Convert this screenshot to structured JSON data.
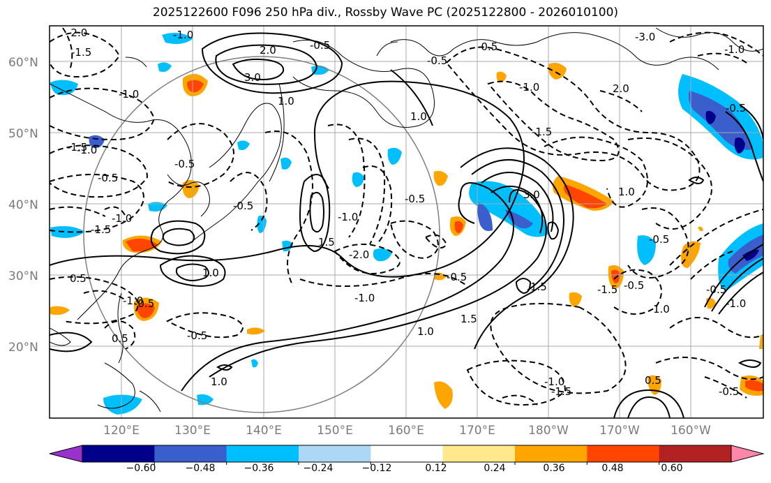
{
  "title": "2025122600 F096 250 hPa div., Rossby Wave PC (2025122800 - 2026010100)",
  "map": {
    "lon_ticks": [
      "120°E",
      "130°E",
      "140°E",
      "150°E",
      "160°E",
      "170°E",
      "180°W",
      "170°W",
      "160°W"
    ],
    "lat_ticks": [
      "60°N",
      "50°N",
      "40°N",
      "30°N",
      "20°N"
    ],
    "grid": true,
    "lon_range": [
      110,
      210
    ],
    "lat_range": [
      10,
      65
    ]
  },
  "colorbar": {
    "ticks": [
      "−0.60",
      "−0.48",
      "−0.36",
      "−0.24",
      "−0.12",
      "0.12",
      "0.24",
      "0.36",
      "0.48",
      "0.60"
    ],
    "colors": [
      "#9932cc",
      "#00008b",
      "#3a5fcd",
      "#00bfff",
      "#add8f5",
      "#ffffff",
      "#ffe98c",
      "#ffa500",
      "#ff4500",
      "#b22222",
      "#ff88aa"
    ]
  },
  "contour_labels": [
    "-1.0",
    "2.0",
    "-0.5",
    "-0.5",
    "-3.0",
    "-1.0",
    "-0.5",
    "-1.5",
    "-1.0",
    "-2.0",
    "-1.0",
    "3.0",
    "1.0",
    "1.0",
    "-0.5",
    "3.0",
    "-1.5",
    "-0.5",
    "-0.5",
    "2.0",
    "-1.0",
    "-0.5",
    "-1.0",
    "-1.5",
    "-0.5",
    "-1.0",
    "1.5",
    "1.0",
    "1.5",
    "-1.5",
    "-0.5",
    "-2.0",
    "-1.0",
    "1.0",
    "1.5",
    "-1.0",
    "-0.5",
    "-0.5",
    "-1.0",
    "0.5",
    "-0.5",
    "0.5",
    "1.0",
    "-1.5",
    "-0.5",
    "-0.5",
    "-1.0",
    "1.0",
    "-0.5",
    "1.0",
    "0.5",
    "-1.5"
  ]
}
